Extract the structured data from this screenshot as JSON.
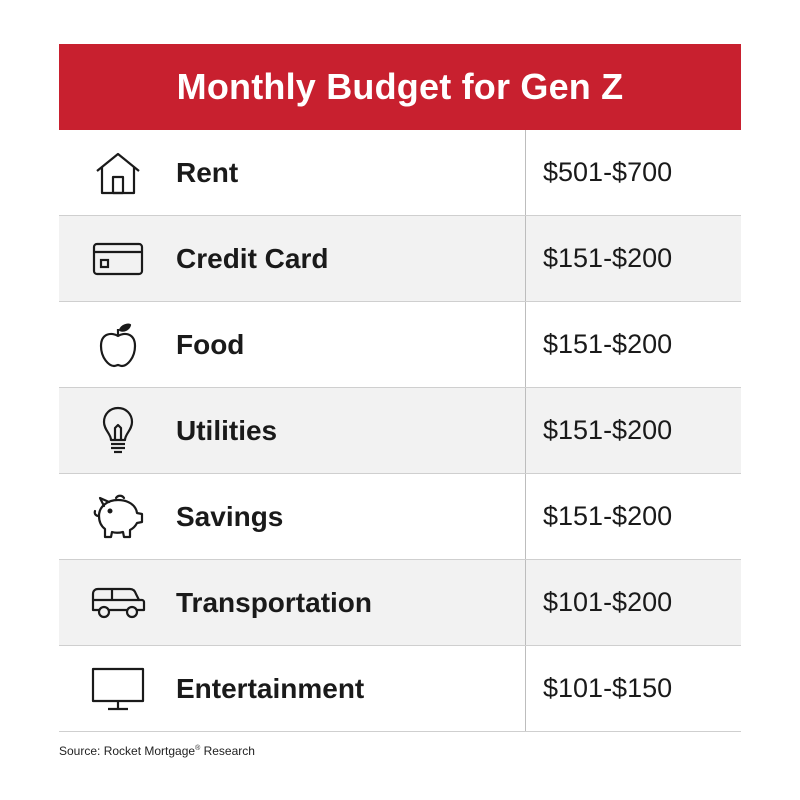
{
  "title": "Monthly Budget for Gen Z",
  "rows": [
    {
      "icon": "house-icon",
      "label": "Rent",
      "value": "$501-$700"
    },
    {
      "icon": "credit-card-icon",
      "label": "Credit Card",
      "value": "$151-$200"
    },
    {
      "icon": "apple-icon",
      "label": "Food",
      "value": "$151-$200"
    },
    {
      "icon": "lightbulb-icon",
      "label": "Utilities",
      "value": "$151-$200"
    },
    {
      "icon": "piggy-bank-icon",
      "label": "Savings",
      "value": "$151-$200"
    },
    {
      "icon": "car-icon",
      "label": "Transportation",
      "value": "$101-$200"
    },
    {
      "icon": "monitor-icon",
      "label": "Entertainment",
      "value": "$101-$150"
    }
  ],
  "source": {
    "prefix": "Source: Rocket Mortgage",
    "mark": "®",
    "suffix": " Research"
  },
  "colors": {
    "header_bg": "#c8202f",
    "alt_row_bg": "#f2f2f2"
  }
}
